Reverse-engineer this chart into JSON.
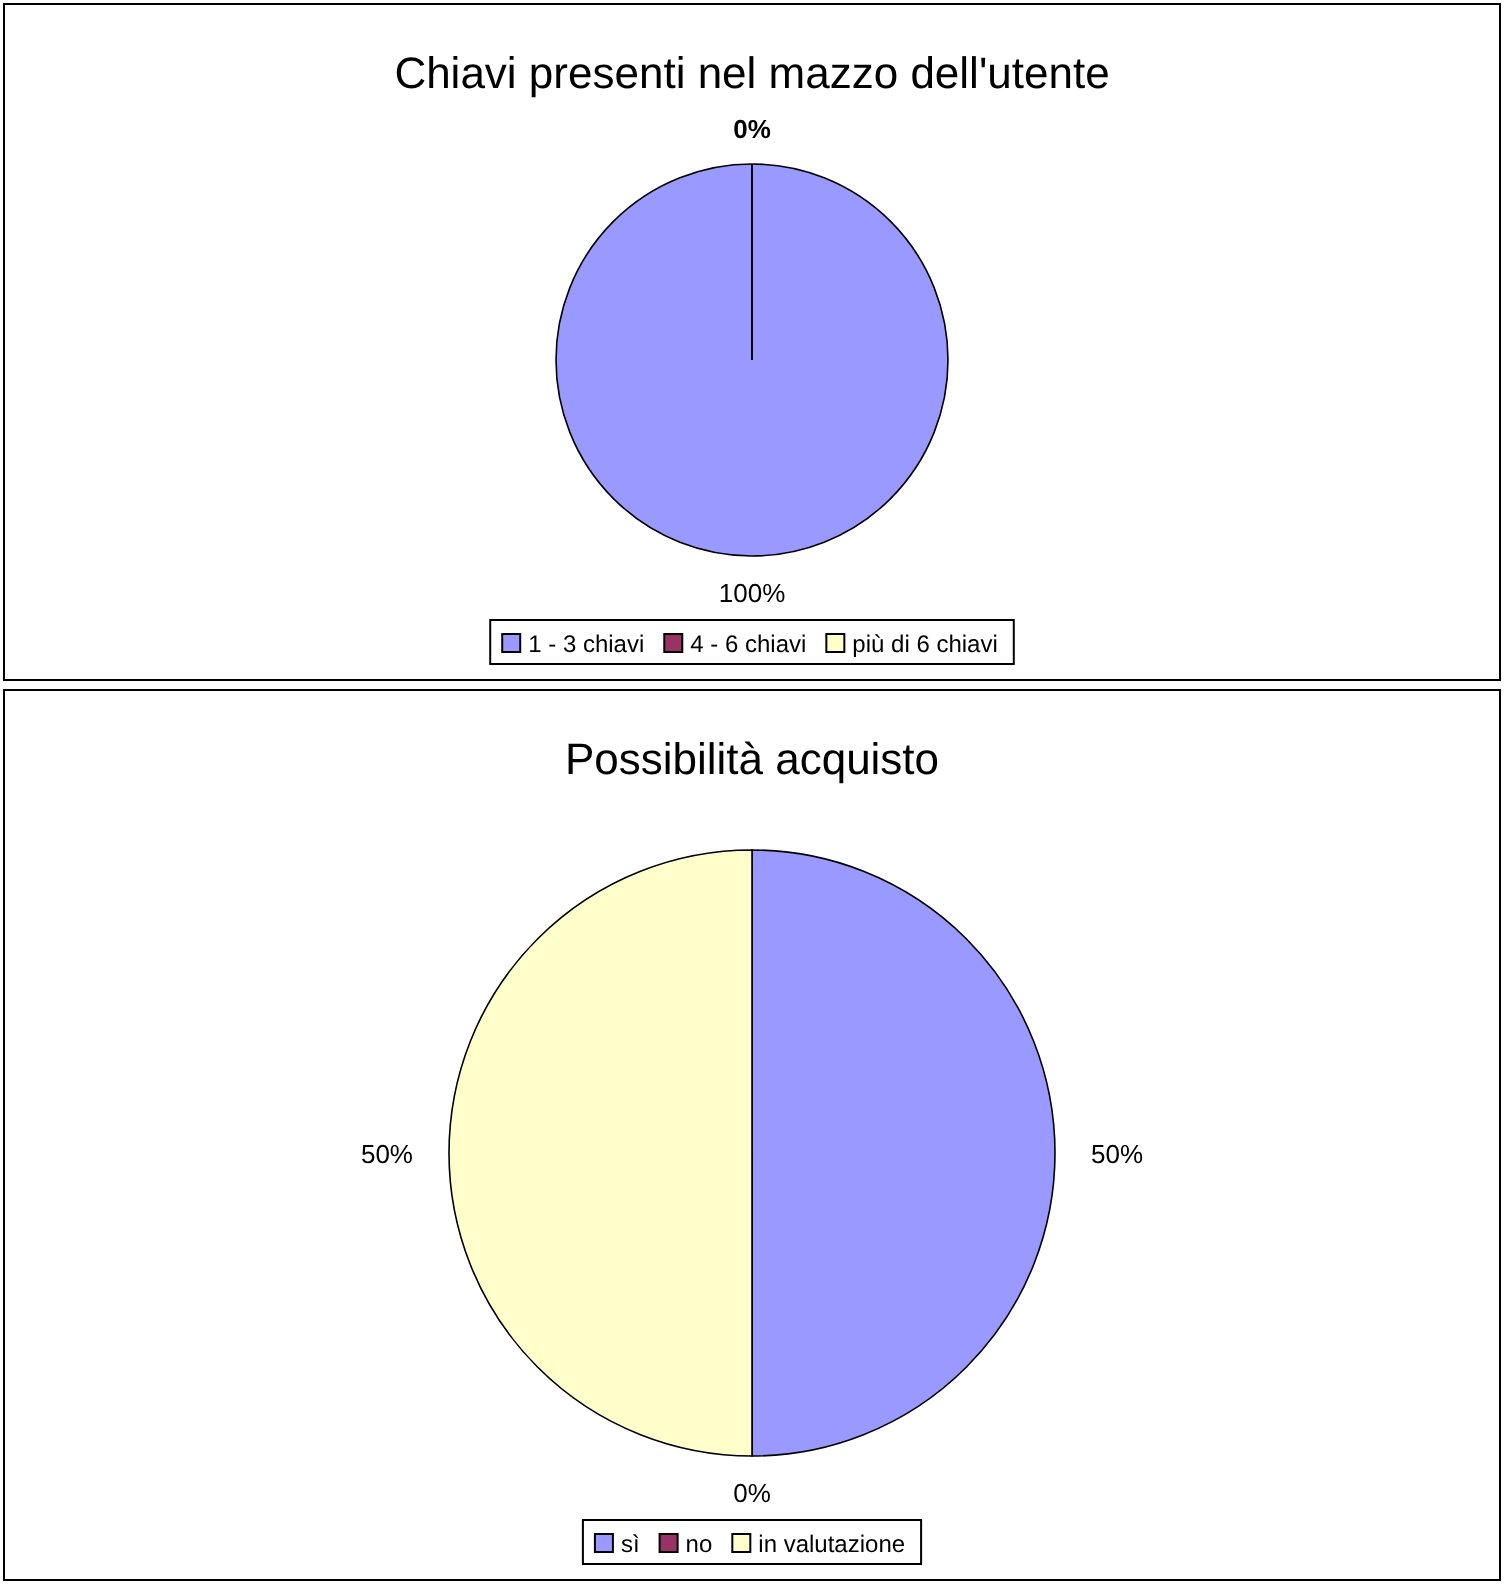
{
  "chart_data": [
    {
      "type": "pie",
      "title": "Chiavi presenti nel mazzo dell'utente",
      "categories": [
        "1 - 3 chiavi",
        "4 - 6 chiavi",
        "più di 6 chiavi"
      ],
      "values": [
        100,
        0,
        0
      ],
      "colors": [
        "#9999ff",
        "#993366",
        "#ffffcc"
      ],
      "value_labels": [
        "100%",
        "0%",
        null
      ],
      "legend": "bottom"
    },
    {
      "type": "pie",
      "title": "Possibilità acquisto",
      "categories": [
        "sì",
        "no",
        "in valutazione"
      ],
      "values": [
        50,
        0,
        50
      ],
      "colors": [
        "#9999ff",
        "#993366",
        "#ffffcc"
      ],
      "value_labels": [
        "50%",
        "0%",
        "50%"
      ],
      "legend": "bottom"
    }
  ]
}
